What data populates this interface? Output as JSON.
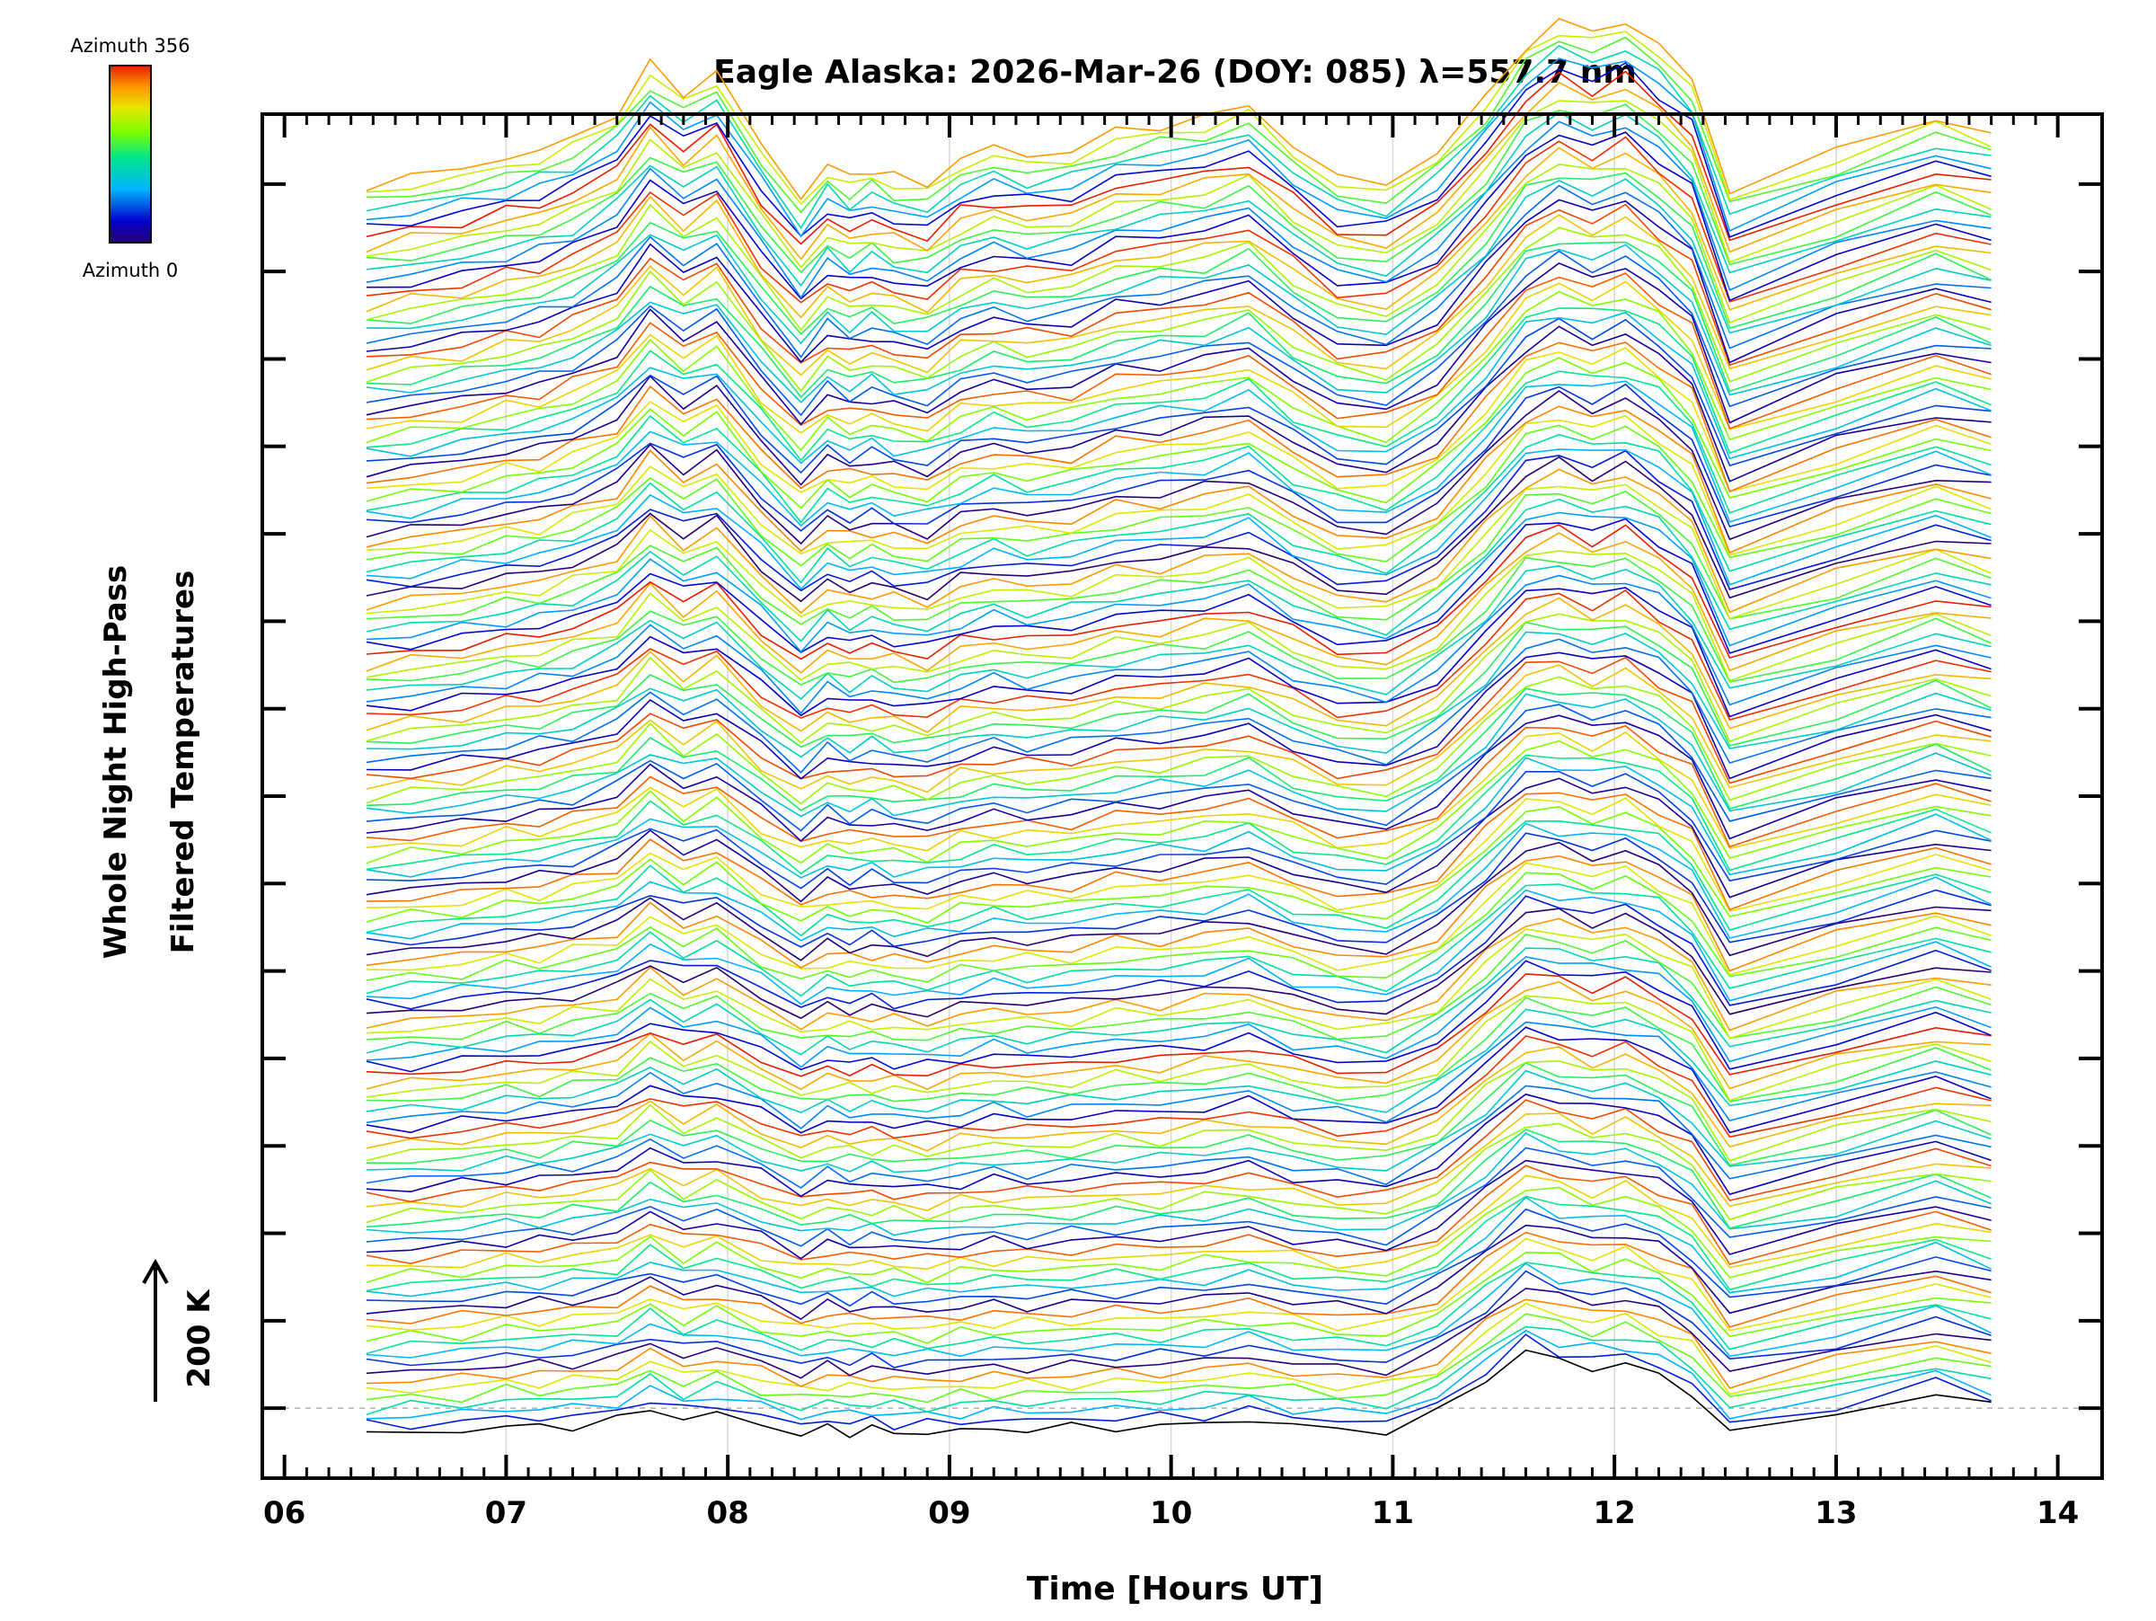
{
  "chart_data": {
    "type": "line",
    "title": "Eagle Alaska: 2026-Mar-26 (DOY: 085) λ=557.7 nm",
    "xlabel": "Time [Hours UT]",
    "ylabel_line1": "Whole Night High-Pass",
    "ylabel_line2": "Filtered Temperatures",
    "scale_label": "200 K",
    "x_range": [
      5.9,
      14.2
    ],
    "x_ticks": [
      "06",
      "07",
      "08",
      "09",
      "10",
      "11",
      "12",
      "13",
      "14"
    ],
    "x_tick_values": [
      6,
      7,
      8,
      9,
      10,
      11,
      12,
      13,
      14
    ],
    "y_range_units": [
      -0.8,
      14.8
    ],
    "y_major_ticks": 15,
    "colorbar": {
      "top_label": "Azimuth 356",
      "bottom_label": "Azimuth 0",
      "colors": [
        "#2a0070",
        "#0000cd",
        "#00b4ff",
        "#00e68c",
        "#78ff00",
        "#e6e600",
        "#ff9600",
        "#e61e00"
      ]
    },
    "time_samples": [
      6.37,
      6.57,
      6.8,
      7.0,
      7.15,
      7.3,
      7.5,
      7.65,
      7.8,
      7.95,
      8.15,
      8.33,
      8.45,
      8.55,
      8.65,
      8.75,
      8.9,
      9.05,
      9.2,
      9.35,
      9.55,
      9.75,
      9.95,
      10.15,
      10.35,
      10.55,
      10.75,
      10.97,
      11.2,
      11.42,
      11.6,
      11.75,
      11.9,
      12.05,
      12.2,
      12.35,
      12.52,
      13.0,
      13.45,
      13.7
    ],
    "profile_base": [
      0.0,
      0.02,
      0.05,
      0.12,
      0.1,
      0.14,
      0.18,
      0.4,
      0.2,
      0.3,
      0.15,
      0.0,
      0.08,
      0.05,
      0.06,
      0.04,
      0.02,
      0.05,
      0.08,
      0.07,
      0.09,
      0.12,
      0.1,
      0.16,
      0.22,
      0.12,
      0.08,
      0.05,
      0.3,
      0.8,
      1.2,
      1.05,
      0.95,
      1.0,
      0.85,
      0.6,
      0.0,
      0.3,
      0.6,
      0.4
    ],
    "profile_top": [
      0.0,
      0.05,
      0.12,
      0.2,
      0.25,
      0.35,
      0.55,
      0.9,
      0.7,
      0.85,
      0.3,
      -0.1,
      0.15,
      0.05,
      0.12,
      0.05,
      0.0,
      0.2,
      0.28,
      0.22,
      0.25,
      0.4,
      0.45,
      0.5,
      0.6,
      0.3,
      0.05,
      0.0,
      0.25,
      0.65,
      1.05,
      1.25,
      1.15,
      1.25,
      1.05,
      0.8,
      -0.05,
      0.25,
      0.5,
      0.4
    ],
    "series_count": 144,
    "series_spacing_units": 0.1,
    "series_amplitude_units": [
      0.8,
      1.5
    ],
    "bottom_series_offset_units": -0.3,
    "series": [
      {
        "name": "lowest trace",
        "azimuth": 0,
        "values": [
          -0.3,
          -0.28,
          -0.25,
          -0.18,
          -0.2,
          -0.16,
          -0.12,
          0.1,
          -0.1,
          0.0,
          -0.15,
          -0.3,
          -0.22,
          -0.25,
          -0.24,
          -0.26,
          -0.28,
          -0.25,
          -0.22,
          -0.23,
          -0.21,
          -0.18,
          -0.2,
          -0.14,
          -0.08,
          -0.18,
          -0.22,
          -0.25,
          0.0,
          0.5,
          0.9,
          0.75,
          0.65,
          0.7,
          0.55,
          0.3,
          -0.3,
          0.0,
          0.3,
          0.1
        ]
      }
    ]
  }
}
